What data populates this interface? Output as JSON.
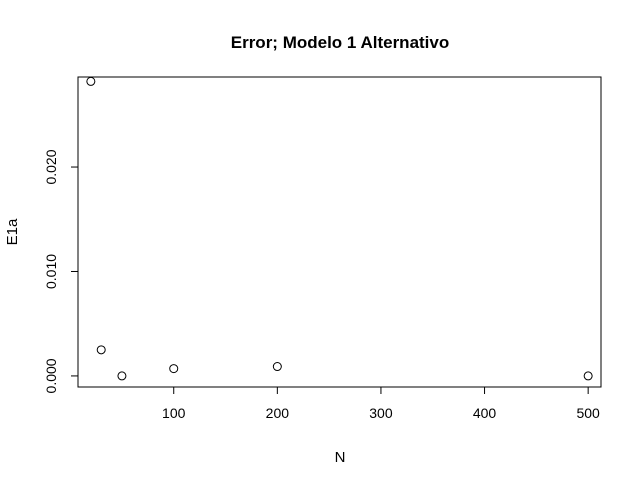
{
  "chart_data": {
    "type": "scatter",
    "title": "Error; Modelo 1 Alternativo",
    "xlabel": "N",
    "ylabel": "E1a",
    "xlim": [
      7.6,
      512.4
    ],
    "ylim": [
      -0.00106,
      0.02862
    ],
    "x_ticks": [
      100,
      200,
      300,
      400,
      500
    ],
    "x_tick_labels": [
      "100",
      "200",
      "300",
      "400",
      "500"
    ],
    "y_ticks": [
      0.0,
      0.01,
      0.02
    ],
    "y_tick_labels": [
      "0.000",
      "0.010",
      "0.020"
    ],
    "grid": false,
    "marker": "open-circle",
    "points": [
      {
        "x": 20,
        "y": 0.0282
      },
      {
        "x": 30,
        "y": 0.0025
      },
      {
        "x": 50,
        "y": 0.0
      },
      {
        "x": 100,
        "y": 0.0007
      },
      {
        "x": 200,
        "y": 0.0009
      },
      {
        "x": 500,
        "y": 0.0
      }
    ]
  }
}
